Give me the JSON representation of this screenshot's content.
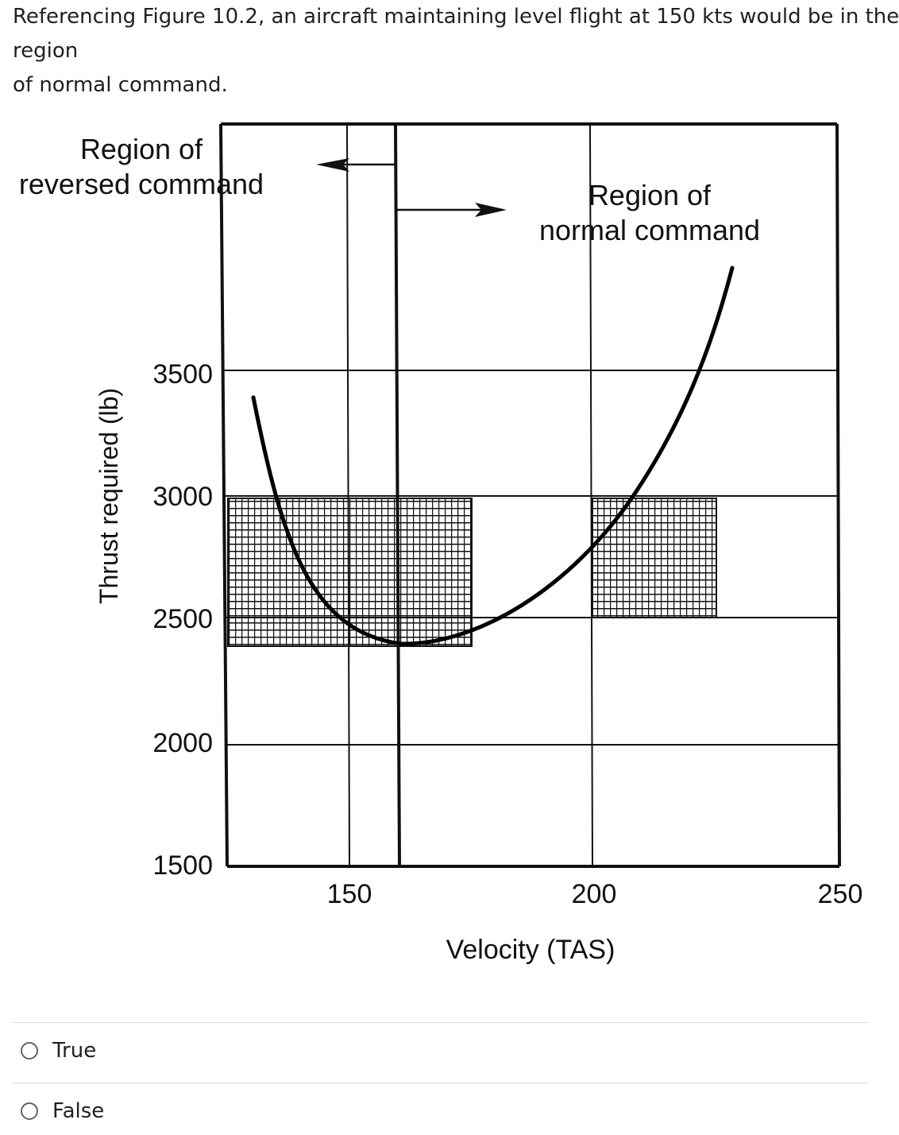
{
  "question": {
    "lines": [
      "Referencing Figure 10.2, an aircraft maintaining level flight at 150 kts would be in the",
      "region",
      "of normal command."
    ]
  },
  "figure": {
    "reversed_label": [
      "Region of",
      "reversed command"
    ],
    "normal_label": [
      "Region of",
      "normal command"
    ],
    "y_axis_title": "Thrust required (lb)",
    "x_axis_title": "Velocity (TAS)",
    "y_ticks": [
      "3500",
      "3000",
      "2500",
      "2000",
      "1500"
    ],
    "x_ticks": [
      "150",
      "200",
      "250"
    ]
  },
  "options": [
    {
      "label": "True"
    },
    {
      "label": "False"
    }
  ]
}
